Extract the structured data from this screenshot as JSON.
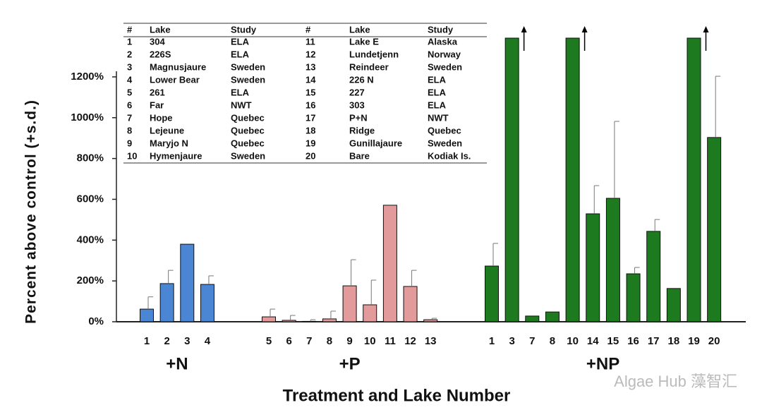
{
  "chart_data": {
    "type": "bar",
    "y_label": "Percent above control (+s.d.)",
    "x_label": "Treatment and Lake Number",
    "ylim": [
      0,
      1390
    ],
    "yticks": [
      {
        "value": 0,
        "label": "0%"
      },
      {
        "value": 200,
        "label": "200%"
      },
      {
        "value": 400,
        "label": "400%"
      },
      {
        "value": 600,
        "label": "600%"
      },
      {
        "value": 800,
        "label": "800%"
      },
      {
        "value": 1000,
        "label": "1000%"
      },
      {
        "value": 1200,
        "label": "1200%"
      }
    ],
    "groups": [
      {
        "name": "+N",
        "color": "#4a86d4",
        "categories": [
          "1",
          "2",
          "3",
          "4"
        ],
        "values": [
          62,
          187,
          380,
          183
        ],
        "errors": [
          60,
          65,
          null,
          42
        ]
      },
      {
        "name": "+P",
        "color": "#e39a9a",
        "categories": [
          "5",
          "6",
          "7",
          "8",
          "9",
          "10",
          "11",
          "12",
          "13"
        ],
        "values": [
          24,
          7,
          2,
          14,
          176,
          83,
          571,
          173,
          10
        ],
        "errors": [
          38,
          24,
          8,
          38,
          128,
          121,
          null,
          79,
          7
        ]
      },
      {
        "name": "+NP",
        "color": "#1e7a1e",
        "categories": [
          "1",
          "3",
          "7",
          "8",
          "10",
          "14",
          "15",
          "16",
          "17",
          "18",
          "19",
          "20"
        ],
        "values": [
          273,
          1390,
          28,
          48,
          1390,
          529,
          605,
          235,
          443,
          163,
          1390,
          903
        ],
        "errors": [
          111,
          null,
          null,
          null,
          null,
          138,
          377,
          31,
          58,
          null,
          null,
          300
        ]
      }
    ],
    "table": {
      "header": [
        "#",
        "Lake",
        "Study"
      ],
      "rows": [
        [
          "1",
          "304",
          "ELA"
        ],
        [
          "2",
          "226S",
          "ELA"
        ],
        [
          "3",
          "Magnusjaure",
          "Sweden"
        ],
        [
          "4",
          "Lower Bear",
          "Sweden"
        ],
        [
          "5",
          "261",
          "ELA"
        ],
        [
          "6",
          "Far",
          "NWT"
        ],
        [
          "7",
          "Hope",
          "Quebec"
        ],
        [
          "8",
          "Lejeune",
          "Quebec"
        ],
        [
          "9",
          "Maryjo N",
          "Quebec"
        ],
        [
          "10",
          "Hymenjaure",
          "Sweden"
        ],
        [
          "11",
          "Lake E",
          "Alaska"
        ],
        [
          "12",
          "Lundetjenn",
          "Norway"
        ],
        [
          "13",
          "Reindeer",
          "Sweden"
        ],
        [
          "14",
          "226 N",
          "ELA"
        ],
        [
          "15",
          "227",
          "ELA"
        ],
        [
          "16",
          "303",
          "ELA"
        ],
        [
          "17",
          "P+N",
          "NWT"
        ],
        [
          "18",
          "Ridge",
          "Quebec"
        ],
        [
          "19",
          "Gunillajaure",
          "Sweden"
        ],
        [
          "20",
          "Bare",
          "Kodiak Is."
        ]
      ]
    },
    "watermark": "Algae Hub 藻智汇"
  }
}
